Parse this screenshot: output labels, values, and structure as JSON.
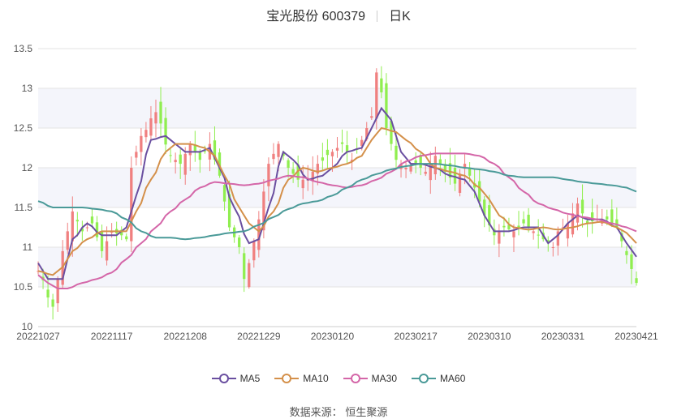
{
  "chart_data": {
    "type": "candlestick",
    "title_name": "宝光股份 600379",
    "title_period": "日K",
    "ylim": [
      10,
      13.5
    ],
    "y_ticks": [
      "10",
      "10.5",
      "11",
      "11.5",
      "12",
      "12.5",
      "13",
      "13.5"
    ],
    "x_ticks": [
      "20221027",
      "20221117",
      "20221208",
      "20221229",
      "20230120",
      "20230217",
      "20230310",
      "20230331",
      "20230421"
    ],
    "x_tick_index": [
      0,
      15,
      30,
      45,
      60,
      77,
      92,
      107,
      122
    ],
    "grid": "horizontal",
    "colors": {
      "up": "#f08080",
      "down": "#90ee50",
      "MA5": "#6a4fa0",
      "MA10": "#d4904a",
      "MA30": "#d466a8",
      "MA60": "#4a9a98"
    },
    "legend": [
      {
        "name": "MA5",
        "color": "#6a4fa0"
      },
      {
        "name": "MA10",
        "color": "#d4904a"
      },
      {
        "name": "MA30",
        "color": "#d466a8"
      },
      {
        "name": "MA60",
        "color": "#4a9a98"
      }
    ],
    "close_keypoints": [
      [
        0,
        10.7
      ],
      [
        3,
        10.25
      ],
      [
        5,
        10.95
      ],
      [
        7,
        11.45
      ],
      [
        9,
        11.2
      ],
      [
        11,
        11.3
      ],
      [
        13,
        10.95
      ],
      [
        15,
        11.2
      ],
      [
        17,
        11.15
      ],
      [
        18,
        11.1
      ],
      [
        19,
        12.0
      ],
      [
        21,
        12.4
      ],
      [
        24,
        12.7
      ],
      [
        27,
        12.15
      ],
      [
        29,
        12.05
      ],
      [
        31,
        12.3
      ],
      [
        33,
        12.1
      ],
      [
        35,
        12.3
      ],
      [
        37,
        11.9
      ],
      [
        39,
        11.25
      ],
      [
        41,
        11.0
      ],
      [
        42,
        10.6
      ],
      [
        43,
        10.8
      ],
      [
        45,
        11.35
      ],
      [
        47,
        12.05
      ],
      [
        49,
        12.3
      ],
      [
        51,
        12.0
      ],
      [
        53,
        11.85
      ],
      [
        55,
        11.85
      ],
      [
        57,
        12.05
      ],
      [
        60,
        12.2
      ],
      [
        62,
        12.3
      ],
      [
        64,
        12.1
      ],
      [
        66,
        12.35
      ],
      [
        68,
        12.65
      ],
      [
        69,
        13.2
      ],
      [
        70,
        12.95
      ],
      [
        71,
        12.5
      ],
      [
        73,
        12.1
      ],
      [
        75,
        12.0
      ],
      [
        77,
        12.05
      ],
      [
        79,
        11.95
      ],
      [
        81,
        12.15
      ],
      [
        83,
        11.95
      ],
      [
        85,
        11.8
      ],
      [
        87,
        12.05
      ],
      [
        89,
        11.75
      ],
      [
        91,
        11.4
      ],
      [
        93,
        11.15
      ],
      [
        95,
        11.25
      ],
      [
        97,
        11.2
      ],
      [
        99,
        11.3
      ],
      [
        101,
        11.2
      ],
      [
        103,
        11.1
      ],
      [
        105,
        11.0
      ],
      [
        106,
        11.2
      ],
      [
        108,
        11.3
      ],
      [
        110,
        11.55
      ],
      [
        112,
        11.3
      ],
      [
        114,
        11.35
      ],
      [
        116,
        11.35
      ],
      [
        118,
        11.25
      ],
      [
        120,
        10.9
      ],
      [
        122,
        10.55
      ]
    ],
    "ma5_keypoints": [
      [
        0,
        10.8
      ],
      [
        2,
        10.6
      ],
      [
        5,
        10.6
      ],
      [
        7,
        11.1
      ],
      [
        10,
        11.3
      ],
      [
        13,
        11.15
      ],
      [
        16,
        11.15
      ],
      [
        18,
        11.25
      ],
      [
        20,
        11.65
      ],
      [
        23,
        12.35
      ],
      [
        26,
        12.4
      ],
      [
        28,
        12.3
      ],
      [
        30,
        12.2
      ],
      [
        33,
        12.2
      ],
      [
        35,
        12.25
      ],
      [
        37,
        12.0
      ],
      [
        40,
        11.5
      ],
      [
        43,
        11.05
      ],
      [
        45,
        11.1
      ],
      [
        47,
        11.5
      ],
      [
        50,
        12.2
      ],
      [
        52,
        12.1
      ],
      [
        55,
        11.85
      ],
      [
        58,
        11.9
      ],
      [
        60,
        12.0
      ],
      [
        63,
        12.2
      ],
      [
        66,
        12.25
      ],
      [
        68,
        12.5
      ],
      [
        70,
        12.75
      ],
      [
        72,
        12.6
      ],
      [
        74,
        12.2
      ],
      [
        76,
        12.05
      ],
      [
        78,
        12.05
      ],
      [
        81,
        12.0
      ],
      [
        84,
        11.9
      ],
      [
        87,
        11.85
      ],
      [
        89,
        11.7
      ],
      [
        91,
        11.4
      ],
      [
        93,
        11.2
      ],
      [
        96,
        11.2
      ],
      [
        99,
        11.25
      ],
      [
        102,
        11.25
      ],
      [
        104,
        11.05
      ],
      [
        106,
        11.15
      ],
      [
        108,
        11.3
      ],
      [
        110,
        11.4
      ],
      [
        112,
        11.35
      ],
      [
        115,
        11.35
      ],
      [
        118,
        11.25
      ],
      [
        120,
        11.05
      ],
      [
        122,
        10.88
      ]
    ],
    "ma10_keypoints": [
      [
        0,
        10.7
      ],
      [
        3,
        10.65
      ],
      [
        5,
        10.75
      ],
      [
        7,
        10.95
      ],
      [
        10,
        11.1
      ],
      [
        13,
        11.2
      ],
      [
        15,
        11.2
      ],
      [
        18,
        11.2
      ],
      [
        20,
        11.45
      ],
      [
        23,
        11.85
      ],
      [
        26,
        12.2
      ],
      [
        28,
        12.3
      ],
      [
        31,
        12.3
      ],
      [
        34,
        12.25
      ],
      [
        36,
        12.15
      ],
      [
        38,
        11.9
      ],
      [
        41,
        11.5
      ],
      [
        43,
        11.3
      ],
      [
        45,
        11.2
      ],
      [
        48,
        11.45
      ],
      [
        51,
        11.85
      ],
      [
        54,
        12.0
      ],
      [
        57,
        11.95
      ],
      [
        60,
        12.0
      ],
      [
        63,
        12.05
      ],
      [
        66,
        12.15
      ],
      [
        68,
        12.35
      ],
      [
        70,
        12.5
      ],
      [
        73,
        12.45
      ],
      [
        75,
        12.35
      ],
      [
        78,
        12.2
      ],
      [
        81,
        12.0
      ],
      [
        84,
        11.95
      ],
      [
        87,
        11.9
      ],
      [
        90,
        11.75
      ],
      [
        92,
        11.6
      ],
      [
        94,
        11.4
      ],
      [
        97,
        11.25
      ],
      [
        100,
        11.22
      ],
      [
        103,
        11.25
      ],
      [
        106,
        11.22
      ],
      [
        109,
        11.25
      ],
      [
        112,
        11.3
      ],
      [
        115,
        11.32
      ],
      [
        118,
        11.25
      ],
      [
        120,
        11.18
      ],
      [
        122,
        11.05
      ]
    ],
    "ma30_keypoints": [
      [
        0,
        10.65
      ],
      [
        2,
        10.55
      ],
      [
        4,
        10.48
      ],
      [
        6,
        10.48
      ],
      [
        9,
        10.55
      ],
      [
        12,
        10.6
      ],
      [
        15,
        10.68
      ],
      [
        18,
        10.85
      ],
      [
        21,
        11.05
      ],
      [
        24,
        11.25
      ],
      [
        27,
        11.45
      ],
      [
        30,
        11.6
      ],
      [
        33,
        11.75
      ],
      [
        36,
        11.82
      ],
      [
        39,
        11.8
      ],
      [
        42,
        11.78
      ],
      [
        45,
        11.8
      ],
      [
        48,
        11.85
      ],
      [
        51,
        11.9
      ],
      [
        54,
        11.88
      ],
      [
        57,
        11.82
      ],
      [
        60,
        11.78
      ],
      [
        63,
        11.75
      ],
      [
        66,
        11.78
      ],
      [
        69,
        11.85
      ],
      [
        72,
        11.95
      ],
      [
        75,
        12.08
      ],
      [
        78,
        12.15
      ],
      [
        81,
        12.18
      ],
      [
        84,
        12.18
      ],
      [
        87,
        12.18
      ],
      [
        90,
        12.15
      ],
      [
        93,
        12.05
      ],
      [
        96,
        11.88
      ],
      [
        99,
        11.7
      ],
      [
        102,
        11.55
      ],
      [
        105,
        11.48
      ],
      [
        108,
        11.42
      ],
      [
        111,
        11.38
      ],
      [
        114,
        11.35
      ],
      [
        117,
        11.3
      ],
      [
        120,
        11.25
      ],
      [
        122,
        11.2
      ]
    ],
    "ma60_keypoints": [
      [
        0,
        11.58
      ],
      [
        3,
        11.5
      ],
      [
        6,
        11.5
      ],
      [
        9,
        11.5
      ],
      [
        12,
        11.48
      ],
      [
        15,
        11.45
      ],
      [
        18,
        11.35
      ],
      [
        21,
        11.2
      ],
      [
        24,
        11.12
      ],
      [
        27,
        11.12
      ],
      [
        30,
        11.1
      ],
      [
        33,
        11.12
      ],
      [
        36,
        11.15
      ],
      [
        39,
        11.18
      ],
      [
        42,
        11.2
      ],
      [
        45,
        11.28
      ],
      [
        48,
        11.38
      ],
      [
        51,
        11.48
      ],
      [
        54,
        11.55
      ],
      [
        57,
        11.58
      ],
      [
        60,
        11.65
      ],
      [
        63,
        11.75
      ],
      [
        66,
        11.85
      ],
      [
        69,
        11.92
      ],
      [
        72,
        11.98
      ],
      [
        75,
        12.02
      ],
      [
        78,
        12.05
      ],
      [
        81,
        12.05
      ],
      [
        84,
        12.03
      ],
      [
        87,
        12.0
      ],
      [
        90,
        11.98
      ],
      [
        93,
        11.95
      ],
      [
        96,
        11.9
      ],
      [
        99,
        11.88
      ],
      [
        102,
        11.88
      ],
      [
        105,
        11.88
      ],
      [
        108,
        11.85
      ],
      [
        111,
        11.82
      ],
      [
        114,
        11.8
      ],
      [
        117,
        11.78
      ],
      [
        120,
        11.75
      ],
      [
        122,
        11.7
      ]
    ]
  },
  "source_label": "数据来源：",
  "source_name": "恒生聚源"
}
